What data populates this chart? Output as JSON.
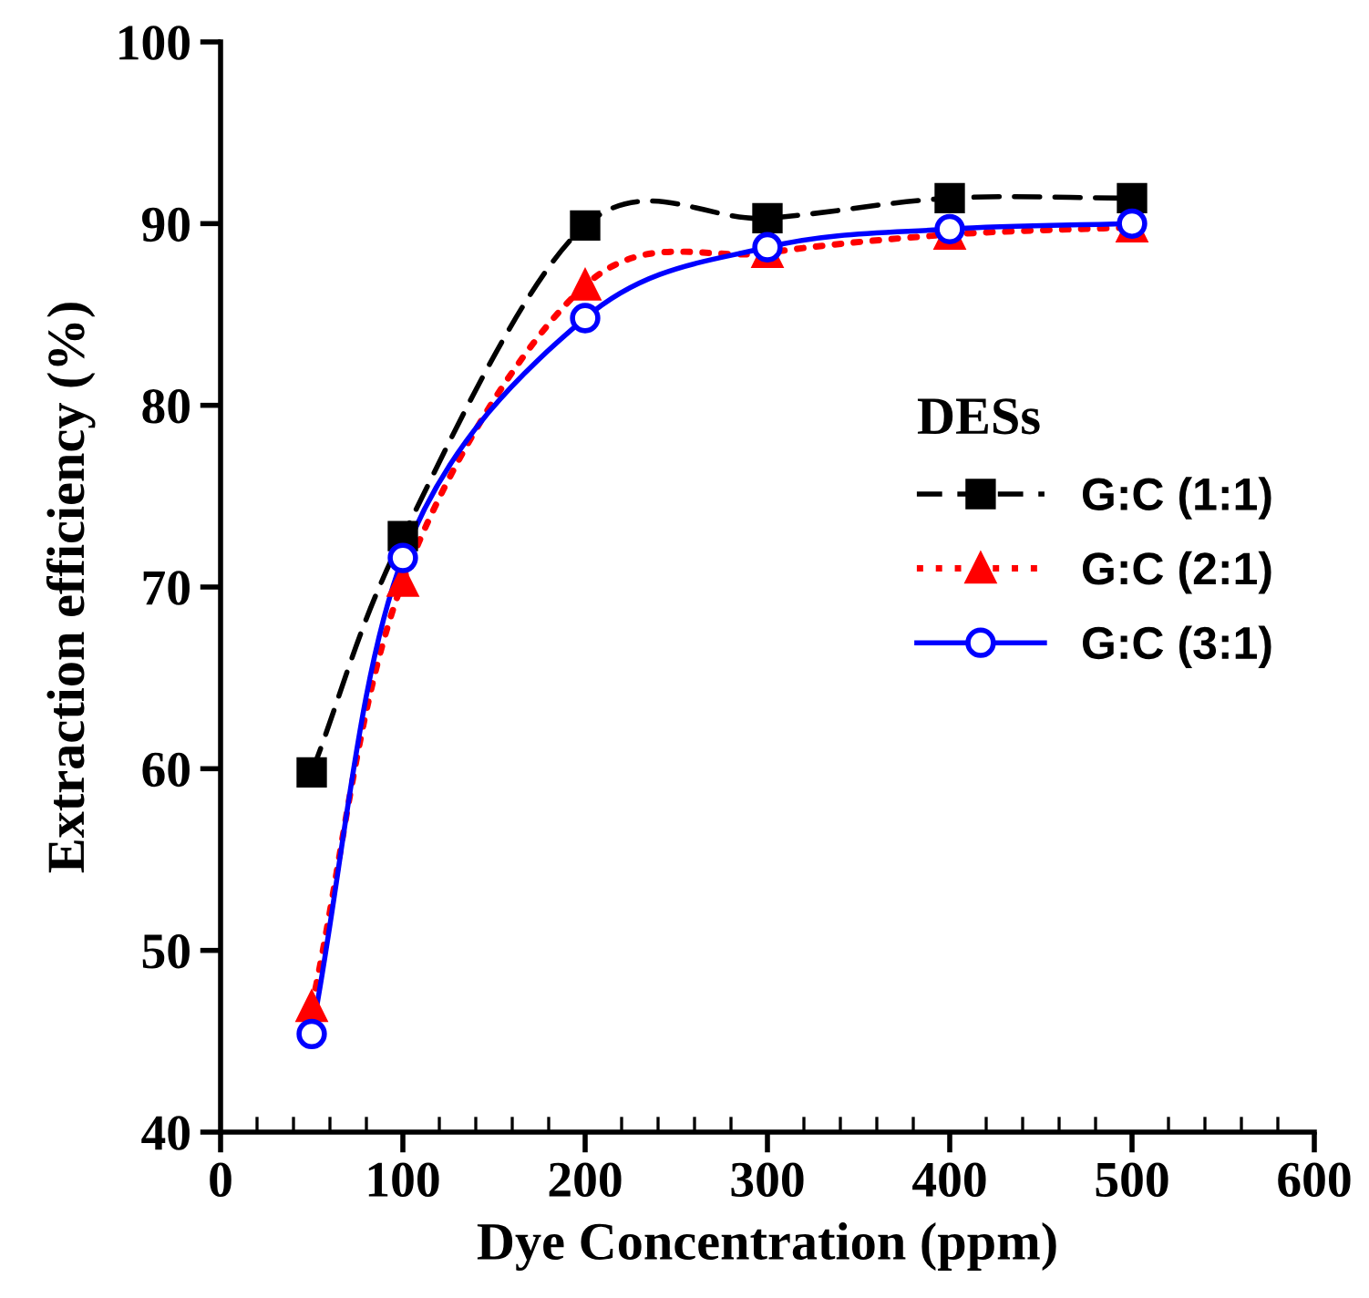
{
  "chart_data": {
    "type": "line",
    "xlabel": "Dye Concentration (ppm)",
    "ylabel": "Extraction efficiency (%)",
    "legend_title": "DESs",
    "legend": "right",
    "x": [
      50,
      100,
      200,
      300,
      400,
      500
    ],
    "series": [
      {
        "name": "G:C (1:1)",
        "color": "#000000",
        "marker": "square",
        "line_style": "dashed",
        "values": [
          59.8,
          72.8,
          89.9,
          90.3,
          91.4,
          91.4
        ]
      },
      {
        "name": "G:C (2:1)",
        "color": "#ff0000",
        "marker": "triangle",
        "line_style": "dotted",
        "values": [
          46.9,
          70.3,
          86.6,
          88.4,
          89.4,
          89.8
        ]
      },
      {
        "name": "G:C (3:1)",
        "color": "#0000ff",
        "marker": "circle",
        "line_style": "solid",
        "values": [
          45.4,
          71.6,
          84.8,
          88.7,
          89.7,
          90.0
        ]
      }
    ],
    "xlim": [
      0,
      600
    ],
    "ylim": [
      40,
      100
    ],
    "xticks": [
      0,
      {
        "value": 20,
        "label": null
      },
      {
        "value": 40,
        "label": null
      },
      {
        "value": 60,
        "label": null
      },
      {
        "value": 80,
        "label": null
      },
      100,
      {
        "value": 120,
        "label": null
      },
      {
        "value": 140,
        "label": null
      },
      {
        "value": 160,
        "label": null
      },
      {
        "value": 180,
        "label": null
      },
      200,
      {
        "value": 220,
        "label": null
      },
      {
        "value": 240,
        "label": null
      },
      {
        "value": 260,
        "label": null
      },
      {
        "value": 280,
        "label": null
      },
      300,
      {
        "value": 320,
        "label": null
      },
      {
        "value": 340,
        "label": null
      },
      {
        "value": 360,
        "label": null
      },
      {
        "value": 380,
        "label": null
      },
      400,
      {
        "value": 420,
        "label": null
      },
      {
        "value": 440,
        "label": null
      },
      {
        "value": 460,
        "label": null
      },
      {
        "value": 480,
        "label": null
      },
      500,
      {
        "value": 520,
        "label": null
      },
      {
        "value": 540,
        "label": null
      },
      {
        "value": 560,
        "label": null
      },
      {
        "value": 580,
        "label": null
      },
      600
    ],
    "yticks": [
      40,
      50,
      60,
      70,
      80,
      90,
      100
    ],
    "grid": false
  }
}
